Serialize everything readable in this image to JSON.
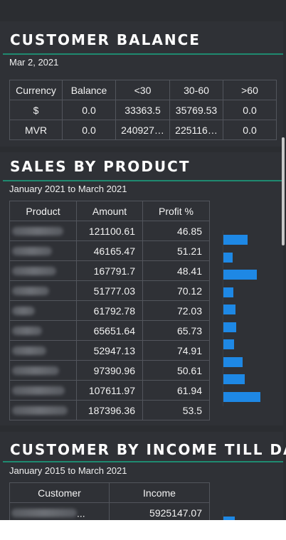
{
  "customer_balance": {
    "title": "CUSTOMER BALANCE",
    "date": "Mar 2, 2021",
    "columns": [
      "Currency",
      "Balance",
      "<30",
      "30-60",
      ">60"
    ],
    "rows": [
      [
        "$",
        "0.0",
        "33363.5",
        "35769.53",
        "0.0"
      ],
      [
        "MVR",
        "0.0",
        "240927…",
        "225116…",
        "0.0"
      ]
    ]
  },
  "sales_by_product": {
    "title": "SALES BY PRODUCT",
    "period": "January 2021 to March 2021",
    "columns": [
      "Product",
      "Amount",
      "Profit %"
    ],
    "rows": [
      {
        "amount": "121100.61",
        "profit": "46.85"
      },
      {
        "amount": "46165.47",
        "profit": "51.21"
      },
      {
        "amount": "167791.7",
        "profit": "48.41"
      },
      {
        "amount": "51777.03",
        "profit": "70.12"
      },
      {
        "amount": "61792.78",
        "profit": "72.03"
      },
      {
        "amount": "65651.64",
        "profit": "65.73"
      },
      {
        "amount": "52947.13",
        "profit": "74.91"
      },
      {
        "amount": "97390.96",
        "profit": "50.61"
      },
      {
        "amount": "107611.97",
        "profit": "61.94"
      },
      {
        "amount": "187396.36",
        "profit": "53.5"
      }
    ],
    "bar_color": "#1e88e5"
  },
  "customer_by_income": {
    "title": "CUSTOMER BY INCOME TILL DATE",
    "period": "January 2015 to March 2021",
    "columns": [
      "Customer",
      "Income"
    ],
    "rows": [
      {
        "customer_suffix": "...",
        "income": "5925147.07"
      }
    ]
  }
}
